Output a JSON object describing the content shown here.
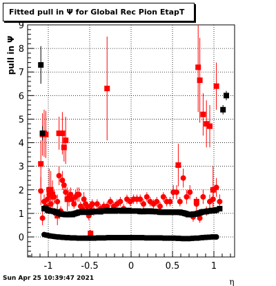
{
  "page": {
    "footer_text": "Sun Apr 25 10:39:47 2021"
  },
  "chart_data": {
    "type": "scatter",
    "title": "Fitted pull in  Ψ  for Global Rec Pion EtapT",
    "xlabel": "η",
    "ylabel": "pull in  Ψ",
    "xlim": [
      -1.25,
      1.25
    ],
    "ylim": [
      -0.85,
      9.0
    ],
    "grid": true,
    "x_ticks": [
      -1,
      -0.5,
      0,
      0.5,
      1
    ],
    "x_tick_labels": [
      "-1",
      "-0.5",
      "0",
      "0.5",
      "1"
    ],
    "y_ticks": [
      0,
      1,
      2,
      3,
      4,
      5,
      6,
      7,
      8,
      9
    ],
    "y_tick_labels": [
      "0",
      "1",
      "2",
      "3",
      "4",
      "5",
      "6",
      "7",
      "8",
      "9"
    ],
    "colors": {
      "red": "#ff0000",
      "black": "#000000"
    },
    "series": [
      {
        "marker": "square",
        "color": "#ff0000",
        "x": [
          -1.09,
          -1.07,
          -1.05,
          -1.03,
          -0.99,
          -0.97,
          -0.95,
          -0.89,
          -0.87,
          -0.83,
          -0.81,
          -0.79,
          -0.77,
          -0.75,
          -0.49,
          -0.29,
          0.57,
          0.79,
          0.81,
          0.83,
          0.87,
          0.91,
          0.95,
          0.99,
          1.03
        ],
        "y": [
          3.1,
          4.35,
          4.4,
          4.35,
          2.0,
          2.0,
          1.8,
          0.9,
          4.4,
          4.4,
          3.8,
          4.1,
          1.6,
          1.6,
          0.15,
          6.3,
          3.05,
          1.5,
          7.2,
          6.65,
          5.2,
          4.8,
          4.7,
          2.0,
          6.4
        ],
        "yerr": [
          1.0,
          0.9,
          1.0,
          1.0,
          0.9,
          0.8,
          0.6,
          0.4,
          0.7,
          0.9,
          0.6,
          1.0,
          0.5,
          0.3,
          0.15,
          2.2,
          0.9,
          0.2,
          1.9,
          1.8,
          0.9,
          1.0,
          0.9,
          1.0,
          1.0
        ]
      },
      {
        "marker": "circle",
        "color": "#ff0000",
        "x": [
          -1.09,
          -1.07,
          -1.05,
          -1.03,
          -1.01,
          -0.99,
          -0.97,
          -0.95,
          -0.93,
          -0.91,
          -0.89,
          -0.87,
          -0.85,
          -0.83,
          -0.81,
          -0.79,
          -0.77,
          -0.75,
          -0.73,
          -0.71,
          -0.69,
          -0.67,
          -0.65,
          -0.63,
          -0.61,
          -0.59,
          -0.57,
          -0.55,
          -0.53,
          -0.51,
          -0.49,
          -0.47,
          -0.45,
          -0.41,
          -0.37,
          -0.33,
          -0.29,
          -0.25,
          -0.21,
          -0.17,
          -0.13,
          -0.09,
          -0.05,
          -0.01,
          0.03,
          0.07,
          0.11,
          0.15,
          0.19,
          0.23,
          0.27,
          0.31,
          0.35,
          0.39,
          0.43,
          0.47,
          0.51,
          0.55,
          0.59,
          0.63,
          0.67,
          0.71,
          0.75,
          0.79,
          0.83,
          0.87,
          0.91,
          0.95,
          0.99,
          1.03,
          1.07
        ],
        "y": [
          1.95,
          0.8,
          1.5,
          1.3,
          1.6,
          1.8,
          1.4,
          1.7,
          1.7,
          1.0,
          1.5,
          2.6,
          1.1,
          2.4,
          2.2,
          1.9,
          1.6,
          1.7,
          1.8,
          1.6,
          1.4,
          1.7,
          1.8,
          1.8,
          1.3,
          1.2,
          1.6,
          1.4,
          1.3,
          0.9,
          1.3,
          1.4,
          1.1,
          1.4,
          1.2,
          1.3,
          1.3,
          1.5,
          1.3,
          1.4,
          1.5,
          1.2,
          1.6,
          1.5,
          1.6,
          1.6,
          1.6,
          1.4,
          1.7,
          1.5,
          1.4,
          1.5,
          1.3,
          1.7,
          1.5,
          1.5,
          1.9,
          1.9,
          1.5,
          2.5,
          1.7,
          1.9,
          0.85,
          1.4,
          0.8,
          1.7,
          1.1,
          1.5,
          1.6,
          2.1,
          1.5
        ],
        "yerr": [
          0.6,
          0.3,
          0.3,
          0.3,
          0.3,
          0.3,
          0.3,
          0.3,
          0.3,
          0.2,
          0.3,
          0.4,
          0.2,
          0.4,
          0.3,
          0.3,
          0.3,
          0.3,
          0.3,
          0.3,
          0.2,
          0.3,
          0.3,
          0.3,
          0.2,
          0.2,
          0.3,
          0.2,
          0.2,
          0.2,
          0.2,
          0.2,
          0.2,
          0.2,
          0.2,
          0.2,
          0.2,
          0.2,
          0.2,
          0.2,
          0.2,
          0.2,
          0.2,
          0.2,
          0.2,
          0.2,
          0.2,
          0.2,
          0.2,
          0.2,
          0.2,
          0.2,
          0.2,
          0.2,
          0.2,
          0.2,
          0.3,
          0.3,
          0.2,
          0.4,
          0.3,
          0.3,
          0.2,
          0.3,
          0.2,
          0.3,
          0.2,
          0.3,
          0.3,
          0.4,
          0.3
        ]
      },
      {
        "marker": "square",
        "color": "#000000",
        "x": [
          -1.09,
          -1.07,
          1.07,
          1.11,
          1.15
        ],
        "y": [
          7.3,
          4.4,
          1.2,
          5.4,
          6.0
        ],
        "yerr": [
          0.8,
          0.3,
          0.1,
          0.2,
          0.2
        ]
      },
      {
        "marker": "square",
        "color": "#000000",
        "x": [
          -1.05,
          -1.03,
          -1.01,
          -0.99,
          -0.97,
          -0.95,
          -0.93,
          -0.91,
          -0.89,
          -0.87,
          -0.85,
          -0.83,
          -0.81,
          -0.79,
          -0.77,
          -0.75,
          -0.73,
          -0.71,
          -0.69,
          -0.67,
          -0.65,
          -0.63,
          -0.61,
          -0.59,
          -0.57,
          -0.55,
          -0.53,
          -0.51,
          -0.49,
          -0.47,
          -0.45,
          -0.43,
          -0.41,
          -0.39,
          -0.37,
          -0.35,
          -0.33,
          -0.31,
          -0.29,
          -0.27,
          -0.25,
          -0.23,
          -0.21,
          -0.19,
          -0.17,
          -0.15,
          -0.13,
          -0.11,
          -0.09,
          -0.07,
          -0.05,
          -0.03,
          -0.01,
          0.01,
          0.03,
          0.05,
          0.07,
          0.09,
          0.11,
          0.13,
          0.15,
          0.17,
          0.19,
          0.21,
          0.23,
          0.25,
          0.27,
          0.29,
          0.31,
          0.33,
          0.35,
          0.37,
          0.39,
          0.41,
          0.43,
          0.45,
          0.47,
          0.49,
          0.51,
          0.53,
          0.55,
          0.57,
          0.59,
          0.61,
          0.63,
          0.65,
          0.67,
          0.69,
          0.71,
          0.73,
          0.75,
          0.77,
          0.79,
          0.81,
          0.83,
          0.85,
          0.87,
          0.89,
          0.91,
          0.93,
          0.95,
          0.97,
          0.99,
          1.01,
          1.03
        ],
        "y": [
          1.2,
          1.22,
          1.15,
          1.12,
          1.1,
          1.1,
          1.08,
          1.05,
          1.05,
          1.0,
          0.98,
          0.97,
          0.96,
          0.95,
          0.95,
          0.95,
          0.97,
          0.95,
          0.98,
          1.0,
          1.02,
          1.05,
          1.05,
          1.07,
          1.05,
          1.07,
          1.05,
          1.07,
          1.05,
          1.08,
          1.07,
          1.08,
          1.08,
          1.08,
          1.07,
          1.1,
          1.1,
          1.1,
          1.12,
          1.1,
          1.1,
          1.12,
          1.12,
          1.1,
          1.12,
          1.12,
          1.12,
          1.1,
          1.12,
          1.1,
          1.12,
          1.12,
          1.1,
          1.1,
          1.1,
          1.1,
          1.1,
          1.1,
          1.08,
          1.08,
          1.08,
          1.1,
          1.08,
          1.1,
          1.1,
          1.08,
          1.08,
          1.08,
          1.07,
          1.07,
          1.05,
          1.05,
          1.05,
          1.05,
          1.05,
          1.05,
          1.05,
          1.05,
          1.05,
          1.05,
          1.05,
          1.05,
          1.05,
          1.03,
          1.02,
          1.0,
          0.98,
          0.95,
          0.95,
          0.95,
          0.97,
          0.97,
          0.98,
          1.0,
          1.02,
          1.05,
          1.07,
          1.07,
          1.08,
          1.1,
          1.1,
          1.12,
          1.12,
          1.12,
          1.15
        ],
        "yerr": []
      },
      {
        "marker": "circle",
        "color": "#000000",
        "x": [
          -1.05,
          -1.03,
          -1.01,
          -0.99,
          -0.97,
          -0.95,
          -0.93,
          -0.91,
          -0.89,
          -0.87,
          -0.85,
          -0.83,
          -0.81,
          -0.79,
          -0.77,
          -0.75,
          -0.73,
          -0.71,
          -0.69,
          -0.67,
          -0.65,
          -0.63,
          -0.61,
          -0.59,
          -0.57,
          -0.55,
          -0.53,
          -0.51,
          -0.49,
          -0.47,
          -0.45,
          -0.43,
          -0.41,
          -0.39,
          -0.37,
          -0.35,
          -0.33,
          -0.31,
          -0.29,
          -0.27,
          -0.25,
          -0.23,
          -0.21,
          -0.19,
          -0.17,
          -0.15,
          -0.13,
          -0.11,
          -0.09,
          -0.07,
          -0.05,
          -0.03,
          -0.01,
          0.01,
          0.03,
          0.05,
          0.07,
          0.09,
          0.11,
          0.13,
          0.15,
          0.17,
          0.19,
          0.21,
          0.23,
          0.25,
          0.27,
          0.29,
          0.31,
          0.33,
          0.35,
          0.37,
          0.39,
          0.41,
          0.43,
          0.45,
          0.47,
          0.49,
          0.51,
          0.53,
          0.55,
          0.57,
          0.59,
          0.61,
          0.63,
          0.65,
          0.67,
          0.69,
          0.71,
          0.73,
          0.75,
          0.77,
          0.79,
          0.81,
          0.83,
          0.85,
          0.87,
          0.89,
          0.91,
          0.93,
          0.95,
          0.97,
          0.99,
          1.01,
          1.03
        ],
        "y": [
          0.1,
          0.08,
          0.07,
          0.05,
          0.04,
          0.03,
          0.02,
          0.01,
          0.0,
          0.0,
          -0.01,
          -0.02,
          -0.02,
          -0.03,
          -0.03,
          -0.03,
          -0.04,
          -0.04,
          -0.04,
          -0.04,
          -0.05,
          -0.05,
          -0.05,
          -0.05,
          -0.05,
          -0.05,
          -0.05,
          -0.05,
          -0.05,
          -0.05,
          -0.05,
          -0.05,
          -0.04,
          -0.04,
          -0.04,
          -0.04,
          -0.04,
          -0.04,
          -0.03,
          -0.03,
          -0.03,
          -0.03,
          -0.03,
          -0.03,
          -0.03,
          -0.03,
          -0.03,
          -0.03,
          -0.03,
          -0.03,
          -0.03,
          -0.03,
          -0.03,
          -0.03,
          -0.03,
          -0.03,
          -0.03,
          -0.03,
          -0.03,
          -0.03,
          -0.03,
          -0.04,
          -0.04,
          -0.04,
          -0.04,
          -0.04,
          -0.04,
          -0.04,
          -0.04,
          -0.04,
          -0.04,
          -0.04,
          -0.05,
          -0.05,
          -0.05,
          -0.05,
          -0.05,
          -0.05,
          -0.05,
          -0.05,
          -0.06,
          -0.06,
          -0.06,
          -0.07,
          -0.07,
          -0.07,
          -0.07,
          -0.07,
          -0.07,
          -0.06,
          -0.06,
          -0.05,
          -0.05,
          -0.05,
          -0.04,
          -0.03,
          -0.03,
          -0.02,
          -0.02,
          -0.01,
          -0.01,
          0.0,
          0.0,
          0.0,
          0.0
        ],
        "yerr": []
      }
    ]
  }
}
